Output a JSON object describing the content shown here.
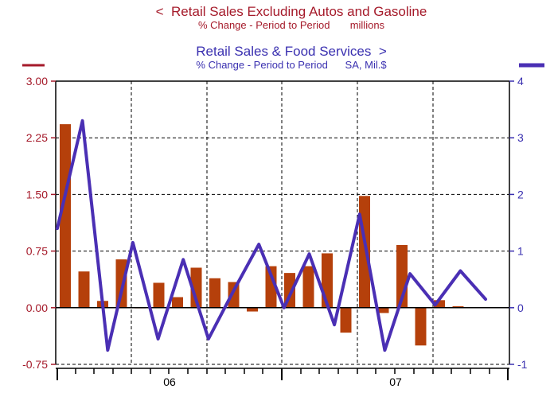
{
  "colors": {
    "left_series": "#b5400b",
    "left_axis": "#a51a2a",
    "right_series": "#4a2fb4",
    "right_axis": "#3a30b0",
    "grid": "#000000"
  },
  "titles": {
    "left_title": "<  Retail Sales Excluding Autos and Gasoline",
    "left_subtitle": "% Change - Period to Period       millions",
    "right_title": "Retail Sales & Food Services  >",
    "right_subtitle": "% Change - Period to Period      SA, Mil.$"
  },
  "chart_data": {
    "type": "bar",
    "left_axis": {
      "ylim": [
        -0.75,
        3.0
      ],
      "ticks": [
        "3.00",
        "2.25",
        "1.50",
        "0.75",
        "0.00",
        "-0.75"
      ],
      "tick_values": [
        3.0,
        2.25,
        1.5,
        0.75,
        0.0,
        -0.75
      ]
    },
    "right_axis": {
      "ylim": [
        -1,
        4
      ],
      "ticks": [
        "4",
        "3",
        "2",
        "1",
        "0",
        "-1"
      ],
      "tick_values": [
        4,
        3,
        2,
        1,
        0,
        -1
      ]
    },
    "x_labels": [
      "06",
      "07"
    ],
    "series": [
      {
        "kind": "bar",
        "axis": "left",
        "values": [
          2.43,
          0.48,
          0.09,
          0.64,
          0.0,
          0.33,
          0.14,
          0.53,
          0.39,
          0.34,
          -0.05,
          0.55,
          0.46,
          0.55,
          0.72,
          -0.33,
          1.48,
          -0.07,
          0.83,
          -0.5,
          0.1,
          0.02
        ]
      },
      {
        "kind": "line",
        "axis": "right",
        "values": [
          1.4,
          3.3,
          -0.75,
          1.15,
          -0.55,
          0.85,
          -0.55,
          0.3,
          1.12,
          0.0,
          0.95,
          -0.3,
          1.65,
          -0.75,
          0.6,
          0.05,
          0.65,
          0.15
        ]
      }
    ]
  }
}
